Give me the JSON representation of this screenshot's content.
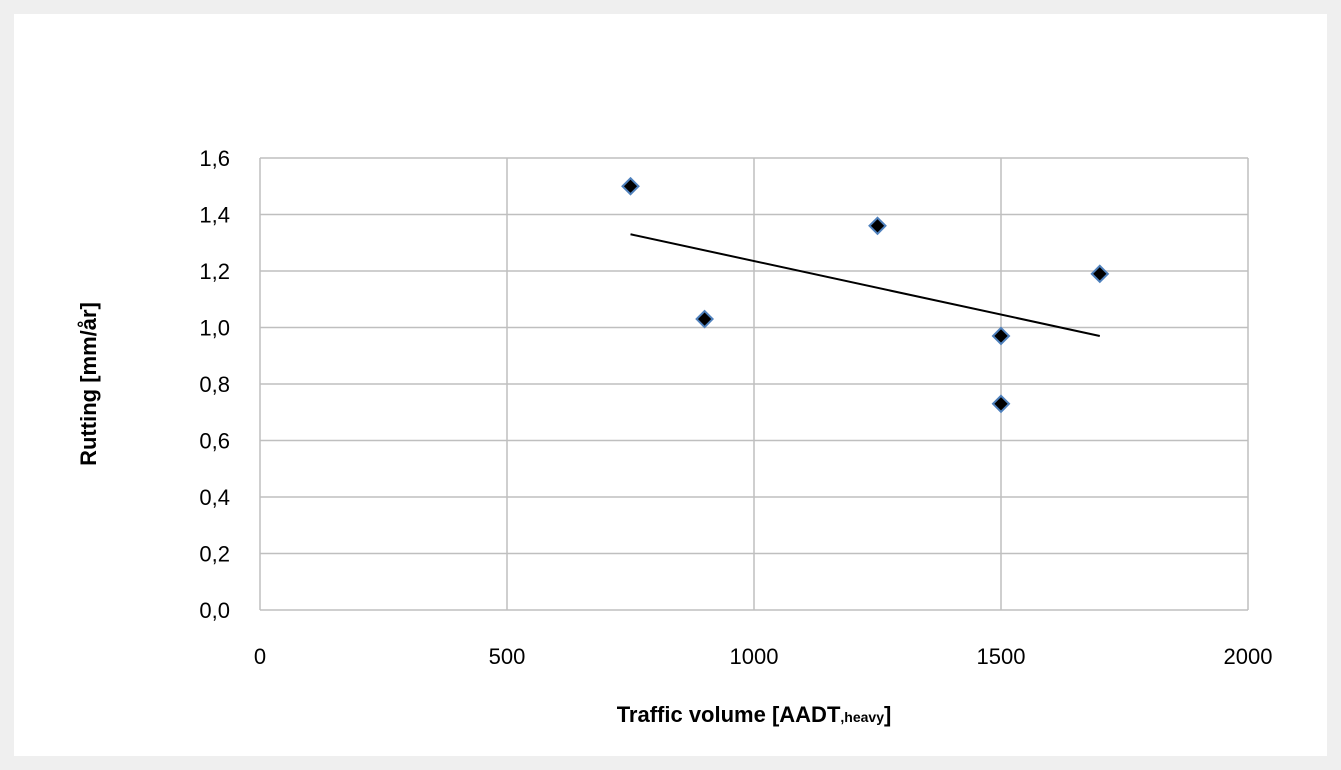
{
  "chart_data": {
    "type": "scatter",
    "title": "",
    "xlabel": "Traffic volume  [AADT",
    "xlabel_subscript": ",heavy",
    "xlabel_suffix": "]",
    "ylabel": "Rutting  [mm/år]",
    "xlim": [
      0,
      2000
    ],
    "ylim": [
      0,
      1.6
    ],
    "x_ticks": [
      0,
      500,
      1000,
      1500,
      2000
    ],
    "x_tick_labels": [
      "0",
      "500",
      "1000",
      "1500",
      "2000"
    ],
    "y_ticks": [
      0,
      0.2,
      0.4,
      0.6,
      0.8,
      1.0,
      1.2,
      1.4,
      1.6
    ],
    "y_tick_labels": [
      "0,0",
      "0,2",
      "0,4",
      "0,6",
      "0,8",
      "1,0",
      "1,2",
      "1,4",
      "1,6"
    ],
    "grid": true,
    "legend": "none",
    "series": [
      {
        "marker": "diamond",
        "marker_fill": "#000000",
        "marker_edge": "#4f81bd",
        "points": [
          {
            "x": 750,
            "y": 1.5
          },
          {
            "x": 900,
            "y": 1.03
          },
          {
            "x": 1250,
            "y": 1.36
          },
          {
            "x": 1500,
            "y": 0.97
          },
          {
            "x": 1500,
            "y": 0.73
          },
          {
            "x": 1700,
            "y": 1.19
          }
        ]
      }
    ],
    "trendline": {
      "type": "linear",
      "color": "#000000",
      "x": [
        750,
        1700
      ],
      "y": [
        1.33,
        0.97
      ]
    },
    "colors": {
      "background": "#ffffff",
      "outer": "#efefef",
      "grid": "#bfbfbf"
    }
  }
}
